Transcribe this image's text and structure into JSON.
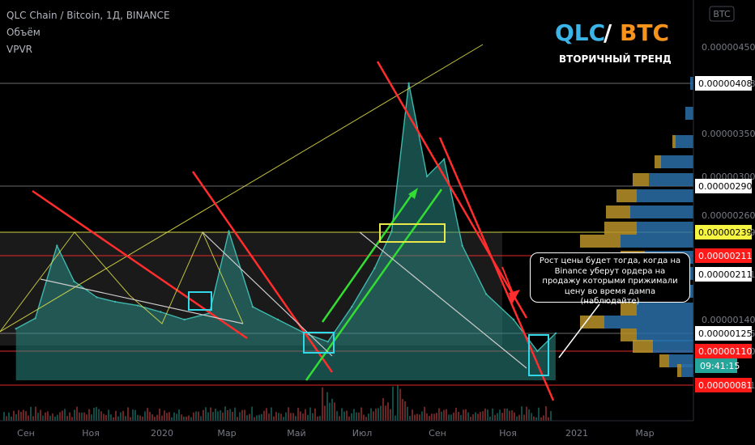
{
  "legend": {
    "symbol_line": "QLC Chain / Bitcoin, 1Д, BINANCE",
    "volume_label": "Объём",
    "vpvr_label": "VPVR"
  },
  "title": {
    "base": "QLC",
    "slash": "/",
    "quote": "BTC",
    "subtitle": "ВТОРИЧНЫЙ ТРЕНД",
    "base_color": "#3bb4e8",
    "quote_color": "#f7931a"
  },
  "currency_badge": "BTC",
  "annotation_note": "Рост цены будет тогда, когда на Binance уберут ордера на продажу которыми прижимали цену во время дампа (наблюдайте)",
  "countdown": "09:41:15",
  "colors": {
    "background": "#000000",
    "support": "#ff2d2d",
    "level_yellow": "#e8e84a",
    "uptrend": "#33dd33",
    "downtrend": "#ff2d2d",
    "area_fill": "#2a8a84",
    "vpvr_blue": "#2a6fa8",
    "vpvr_gold": "#b8922a",
    "highlight_box": "#31d8e8"
  },
  "chart_data": {
    "type": "line",
    "x_tick_labels": [
      "Сен",
      "Ноя",
      "2020",
      "Мар",
      "Май",
      "Июл",
      "Сен",
      "Ноя",
      "2021",
      "Мар"
    ],
    "y_tick_labels": [
      "0.00000450",
      "0.00000408",
      "0.00000350",
      "0.00000300",
      "0.00000260",
      "0.00000239",
      "0.00000211",
      "0.00000140",
      "0.00000125",
      "0.00000110",
      "0.00000081"
    ],
    "price_levels": [
      {
        "value": 4.08e-06,
        "label": "0.00000408",
        "style": "white"
      },
      {
        "value": 2.9e-06,
        "label": "0.00000290",
        "style": "white"
      },
      {
        "value": 2.39e-06,
        "label": "0.00000239",
        "style": "yellow"
      },
      {
        "value": 2.11e-06,
        "label": "0.00000211",
        "style": "red"
      },
      {
        "value": 2.11e-06,
        "label": "0.00000211",
        "style": "white"
      },
      {
        "value": 1.25e-06,
        "label": "0.00000125",
        "style": "white"
      },
      {
        "value": 1.1e-06,
        "label": "0.00000110",
        "style": "red"
      },
      {
        "value": 8.1e-07,
        "label": "0.00000081",
        "style": "red"
      }
    ],
    "series": [
      {
        "x": [
          "2019-08-15",
          "2019-09-01",
          "2019-09-20",
          "2019-10-05",
          "2019-10-25",
          "2019-11-10",
          "2019-11-30",
          "2019-12-20",
          "2020-01-10",
          "2020-02-01",
          "2020-02-18",
          "2020-03-10",
          "2020-04-01",
          "2020-04-25",
          "2020-05-15",
          "2020-06-05",
          "2020-06-25",
          "2020-07-10",
          "2020-07-25",
          "2020-08-10",
          "2020-08-25",
          "2020-09-10",
          "2020-10-01",
          "2020-10-25",
          "2020-11-15",
          "2020-12-01"
        ],
        "values": [
          1.3e-06,
          1.42e-06,
          2.3e-06,
          2e-06,
          1.75e-06,
          1.68e-06,
          1.62e-06,
          1.52e-06,
          1.4e-06,
          1.5e-06,
          2.4e-06,
          1.6e-06,
          1.4e-06,
          1.25e-06,
          1.18e-06,
          1.6e-06,
          2.15e-06,
          2.4e-06,
          4.08e-06,
          3e-06,
          3.2e-06,
          2.3e-06,
          1.8e-06,
          1.4e-06,
          1.1e-06,
          1.25e-06
        ]
      }
    ]
  }
}
